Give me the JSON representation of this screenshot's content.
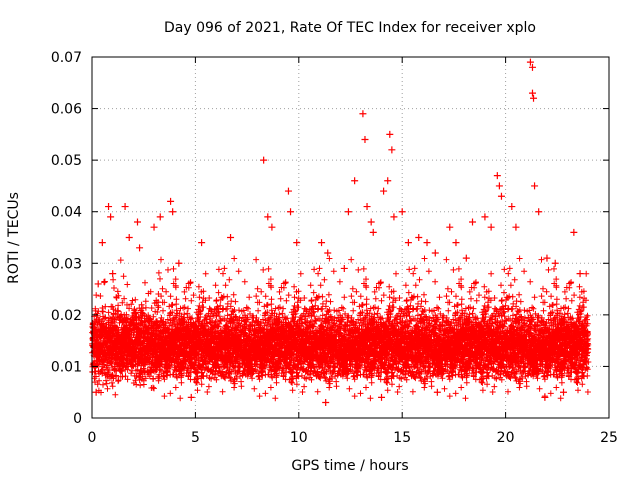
{
  "chart_data": {
    "type": "scatter",
    "title": "Day 096 of 2021, Rate Of TEC Index for receiver xplo",
    "xlabel": "GPS time / hours",
    "ylabel": "ROTI / TECUs",
    "xlim": [
      0,
      25
    ],
    "ylim": [
      0,
      0.07
    ],
    "x_ticks": [
      "0",
      "5",
      "10",
      "15",
      "20",
      "25"
    ],
    "y_ticks": [
      "0",
      "0.01",
      "0.02",
      "0.03",
      "0.04",
      "0.05",
      "0.06",
      "0.07"
    ],
    "grid": true,
    "marker": "+",
    "color": "#ff0000",
    "x_data_range": [
      0,
      24
    ],
    "bulk": {
      "description": "dense cloud of samples at ~30s intervals",
      "typical_range": [
        0.008,
        0.022
      ],
      "median": 0.014
    },
    "series": [
      {
        "name": "ROTI",
        "points": [
          [
            0.3,
            0.026
          ],
          [
            0.5,
            0.034
          ],
          [
            0.8,
            0.041
          ],
          [
            0.9,
            0.039
          ],
          [
            1.0,
            0.028
          ],
          [
            1.6,
            0.041
          ],
          [
            1.8,
            0.035
          ],
          [
            2.2,
            0.038
          ],
          [
            2.3,
            0.033
          ],
          [
            3.0,
            0.037
          ],
          [
            3.3,
            0.039
          ],
          [
            3.8,
            0.042
          ],
          [
            3.9,
            0.04
          ],
          [
            4.2,
            0.03
          ],
          [
            5.3,
            0.034
          ],
          [
            6.7,
            0.035
          ],
          [
            8.3,
            0.05
          ],
          [
            8.5,
            0.039
          ],
          [
            8.7,
            0.037
          ],
          [
            9.5,
            0.044
          ],
          [
            9.6,
            0.04
          ],
          [
            9.9,
            0.034
          ],
          [
            11.1,
            0.034
          ],
          [
            11.4,
            0.032
          ],
          [
            12.2,
            0.029
          ],
          [
            12.4,
            0.04
          ],
          [
            12.7,
            0.046
          ],
          [
            13.1,
            0.059
          ],
          [
            13.2,
            0.054
          ],
          [
            13.3,
            0.041
          ],
          [
            13.5,
            0.038
          ],
          [
            13.6,
            0.036
          ],
          [
            14.1,
            0.044
          ],
          [
            14.3,
            0.046
          ],
          [
            14.4,
            0.055
          ],
          [
            14.5,
            0.052
          ],
          [
            14.6,
            0.039
          ],
          [
            15.0,
            0.04
          ],
          [
            15.3,
            0.034
          ],
          [
            15.8,
            0.035
          ],
          [
            16.2,
            0.034
          ],
          [
            16.6,
            0.032
          ],
          [
            17.3,
            0.037
          ],
          [
            17.6,
            0.034
          ],
          [
            18.1,
            0.031
          ],
          [
            18.4,
            0.038
          ],
          [
            19.0,
            0.039
          ],
          [
            19.3,
            0.037
          ],
          [
            19.6,
            0.047
          ],
          [
            19.7,
            0.045
          ],
          [
            19.8,
            0.043
          ],
          [
            20.3,
            0.041
          ],
          [
            20.5,
            0.037
          ],
          [
            21.2,
            0.069
          ],
          [
            21.3,
            0.068
          ],
          [
            21.3,
            0.063
          ],
          [
            21.35,
            0.062
          ],
          [
            21.4,
            0.045
          ],
          [
            21.6,
            0.04
          ],
          [
            22.0,
            0.031
          ],
          [
            22.4,
            0.03
          ],
          [
            23.3,
            0.036
          ],
          [
            23.6,
            0.028
          ],
          [
            0.2,
            0.005
          ],
          [
            4.8,
            0.004
          ],
          [
            11.3,
            0.003
          ],
          [
            14.0,
            0.004
          ],
          [
            16.7,
            0.005
          ],
          [
            21.9,
            0.004
          ],
          [
            22.8,
            0.005
          ]
        ]
      }
    ]
  }
}
